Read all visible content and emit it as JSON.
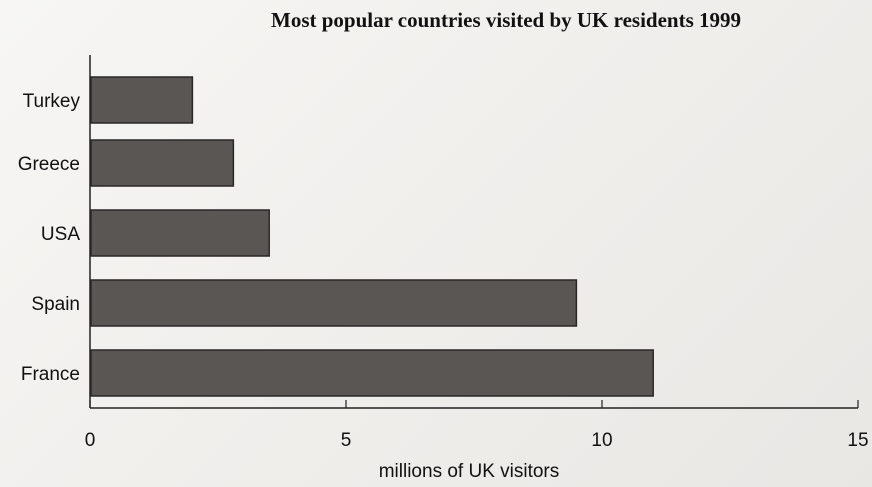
{
  "chart_data": {
    "type": "bar",
    "orientation": "horizontal",
    "title": "Most popular countries visited by UK residents 1999",
    "xlabel": "millions of UK visitors",
    "ylabel": "",
    "categories": [
      "Turkey",
      "Greece",
      "USA",
      "Spain",
      "France"
    ],
    "values": [
      2.0,
      2.8,
      3.5,
      9.5,
      11.0
    ],
    "xlim": [
      0,
      15
    ],
    "xticks": [
      "0",
      "5",
      "10",
      "15"
    ],
    "grid": false,
    "bar_color": "#5a5654"
  }
}
